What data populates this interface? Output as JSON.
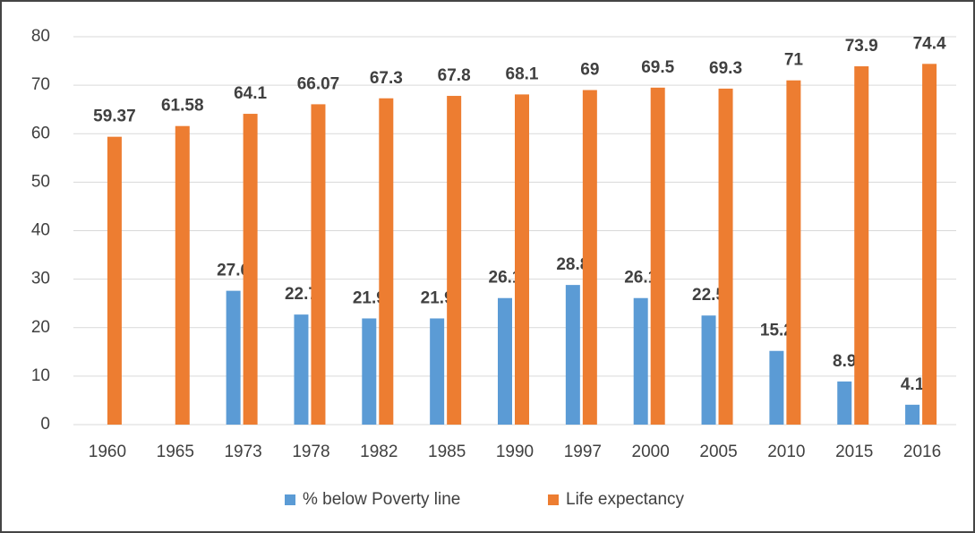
{
  "chart_data": {
    "type": "bar",
    "categories": [
      "1960",
      "1965",
      "1973",
      "1978",
      "1982",
      "1985",
      "1990",
      "1997",
      "2000",
      "2005",
      "2010",
      "2015",
      "2016"
    ],
    "series": [
      {
        "name": "% below Poverty line",
        "color": "#5b9bd5",
        "values": [
          null,
          null,
          27.6,
          22.7,
          21.9,
          21.9,
          26.1,
          28.8,
          26.1,
          22.5,
          15.2,
          8.9,
          4.1
        ]
      },
      {
        "name": "Life expectancy",
        "color": "#ed7d31",
        "values": [
          59.37,
          61.58,
          64.1,
          66.07,
          67.3,
          67.8,
          68.1,
          69,
          69.5,
          69.3,
          71,
          73.9,
          74.4
        ]
      }
    ],
    "ylim": [
      0,
      80
    ],
    "yticks": [
      0,
      10,
      20,
      30,
      40,
      50,
      60,
      70,
      80
    ],
    "grid": true,
    "legend": "bottom"
  }
}
